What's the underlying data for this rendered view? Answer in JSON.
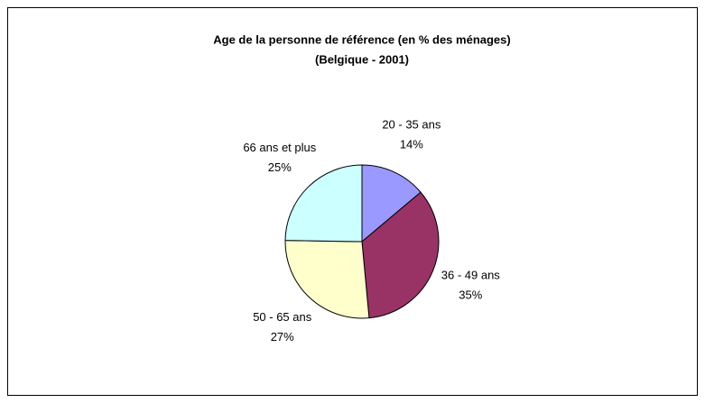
{
  "chart_data": {
    "type": "pie",
    "title": "Age de la personne de référence (en % des ménages)",
    "subtitle": "(Belgique - 2001)",
    "categories": [
      "20 - 35 ans",
      "36 - 49 ans",
      "50 - 65 ans",
      "66 ans et plus"
    ],
    "values": [
      14,
      35,
      27,
      25
    ],
    "value_labels": [
      "14%",
      "35%",
      "27%",
      "25%"
    ],
    "colors": [
      "#9999ff",
      "#993366",
      "#ffffcc",
      "#ccffff"
    ]
  }
}
